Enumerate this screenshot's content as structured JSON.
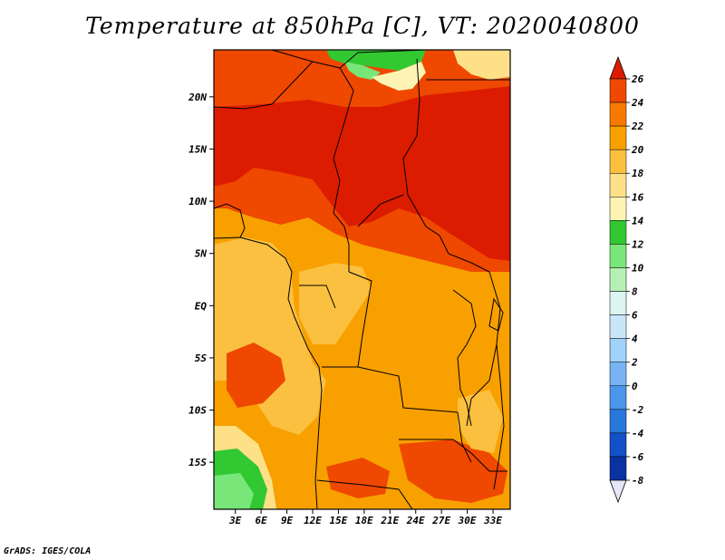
{
  "title": "Temperature at 850hPa [C], VT: 2020040800",
  "credit": "GrADS: IGES/COLA",
  "map": {
    "x_ticks": [
      "3E",
      "6E",
      "9E",
      "12E",
      "15E",
      "18E",
      "21E",
      "24E",
      "27E",
      "30E",
      "33E"
    ],
    "x_tick_values": [
      3,
      6,
      9,
      12,
      15,
      18,
      21,
      24,
      27,
      30,
      33
    ],
    "y_ticks": [
      "20N",
      "15N",
      "10N",
      "5N",
      "EQ",
      "5S",
      "10S",
      "15S"
    ],
    "y_tick_values": [
      20,
      15,
      10,
      5,
      0,
      -5,
      -10,
      -15
    ],
    "lon_range": [
      0.5,
      35
    ],
    "lat_range": [
      -19.5,
      24.5
    ]
  },
  "colorbar": {
    "labels": [
      "26",
      "24",
      "22",
      "20",
      "18",
      "16",
      "14",
      "12",
      "10",
      "8",
      "6",
      "4",
      "2",
      "0",
      "-2",
      "-4",
      "-6",
      "-8"
    ],
    "colors": [
      "#dc1c00",
      "#ef4800",
      "#f77a00",
      "#f8a000",
      "#fbc040",
      "#fde088",
      "#fdf4b4",
      "#32c832",
      "#78e678",
      "#b4f0b4",
      "#dcf5f0",
      "#c8e6fa",
      "#a0d2fa",
      "#78b4f5",
      "#4b96eb",
      "#2878dc",
      "#1450c8",
      "#0a32a0",
      "#00146e"
    ],
    "top_arrow_color": "#dc1c00",
    "bottom_arrow_color": "#e6e6fa"
  }
}
